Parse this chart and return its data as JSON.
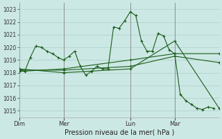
{
  "background_color": "#cce8e4",
  "line_color": "#1a5c1a",
  "grid_color": "#aacfc8",
  "title": "Pression niveau de la mer( hPa )",
  "ylim": [
    1014.5,
    1023.5
  ],
  "yticks": [
    1015,
    1016,
    1017,
    1018,
    1019,
    1020,
    1021,
    1022,
    1023
  ],
  "day_labels": [
    "Dim",
    "Mer",
    "Lun",
    "Mar"
  ],
  "day_positions": [
    0,
    48,
    120,
    168
  ],
  "total_hours": 216,
  "series1": {
    "x": [
      0,
      6,
      12,
      18,
      24,
      30,
      36,
      42,
      48,
      54,
      60,
      66,
      72,
      78,
      84,
      90,
      96,
      102,
      108,
      114,
      120,
      126,
      132,
      138,
      144,
      150,
      156,
      162,
      168,
      174,
      180,
      186,
      192,
      198,
      204,
      210
    ],
    "y": [
      1018.3,
      1018.1,
      1019.2,
      1020.1,
      1020.0,
      1019.7,
      1019.5,
      1019.2,
      1019.0,
      1019.3,
      1019.7,
      1018.5,
      1017.8,
      1018.1,
      1018.5,
      1018.3,
      1018.3,
      1021.6,
      1021.5,
      1022.1,
      1022.8,
      1022.5,
      1020.5,
      1019.7,
      1019.7,
      1021.1,
      1020.9,
      1019.8,
      1019.5,
      1016.3,
      1015.8,
      1015.5,
      1015.2,
      1015.1,
      1015.3,
      1015.2
    ]
  },
  "series2": {
    "x": [
      0,
      216
    ],
    "y": [
      1018.1,
      1019.5
    ],
    "markers_x": [
      0,
      48,
      120,
      168,
      216
    ],
    "markers_y": [
      1018.1,
      1018.3,
      1019.0,
      1019.5,
      1019.5
    ]
  },
  "series3": {
    "x": [
      0,
      216
    ],
    "y": [
      1018.2,
      1018.8
    ],
    "markers_x": [
      0,
      48,
      120,
      168,
      216
    ],
    "markers_y": [
      1018.2,
      1018.2,
      1018.5,
      1019.3,
      1018.8
    ]
  },
  "series4": {
    "x": [
      0,
      216
    ],
    "y": [
      1018.3,
      1015.2
    ],
    "markers_x": [
      0,
      48,
      120,
      168,
      216
    ],
    "markers_y": [
      1018.3,
      1018.0,
      1018.3,
      1020.5,
      1015.2
    ]
  }
}
